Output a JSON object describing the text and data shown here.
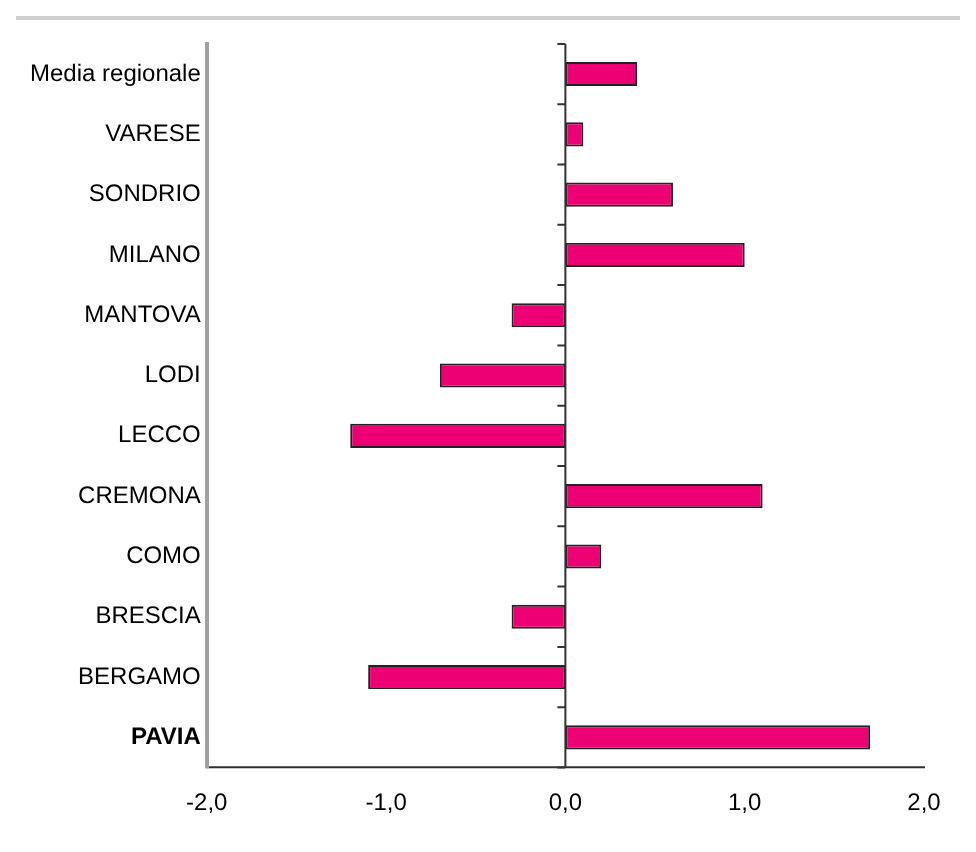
{
  "chart_data": {
    "type": "bar",
    "orientation": "horizontal",
    "categories": [
      "Media regionale",
      "VARESE",
      "SONDRIO",
      "MILANO",
      "MANTOVA",
      "LODI",
      "LECCO",
      "CREMONA",
      "COMO",
      "BRESCIA",
      "BERGAMO",
      "PAVIA"
    ],
    "values": [
      0.4,
      0.1,
      0.6,
      1.0,
      -0.3,
      -0.7,
      -1.2,
      1.1,
      0.2,
      -0.3,
      -1.1,
      1.7
    ],
    "color": "#ec0074",
    "xlim": [
      -2,
      2
    ],
    "xticks": [
      {
        "value": -2,
        "label": "-2,0"
      },
      {
        "value": -1,
        "label": "-1,0"
      },
      {
        "value": 0,
        "label": "0,0"
      },
      {
        "value": 1,
        "label": "1,0"
      },
      {
        "value": 2,
        "label": "2,0"
      }
    ],
    "ref_lines": [
      {
        "axis": "x",
        "value": 0,
        "color": "#333333"
      }
    ],
    "grid": false,
    "legend": false
  }
}
